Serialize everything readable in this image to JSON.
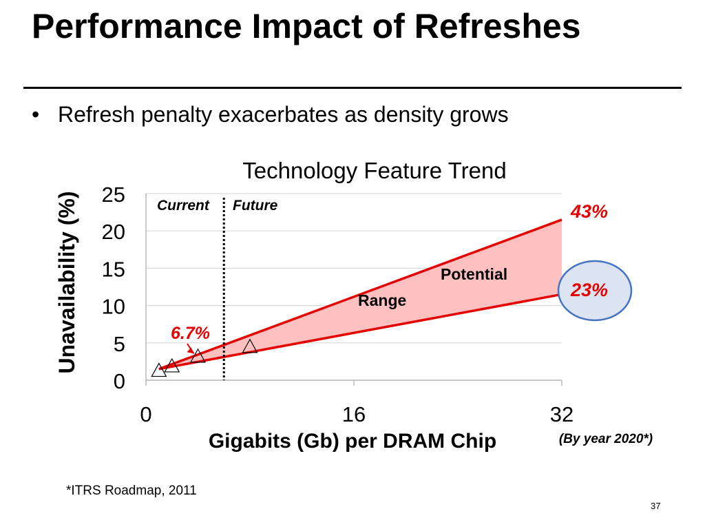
{
  "slide": {
    "title": "Performance Impact of Refreshes",
    "bullet": "Refresh penalty exacerbates as density grows",
    "footnote": "*ITRS Roadmap, 2011",
    "page_number": "37",
    "bullet_symbol": "•"
  },
  "chart_data": {
    "type": "line",
    "title": "Technology Feature Trend",
    "xlabel": "Gigabits (Gb) per DRAM Chip",
    "xlabel_note": "(By year 2020*)",
    "ylabel": "Unavailability (%)",
    "xlim": [
      0,
      32
    ],
    "ylim": [
      0,
      25
    ],
    "x_ticks": [
      0,
      16,
      32
    ],
    "y_ticks": [
      0,
      5,
      10,
      15,
      20,
      25
    ],
    "grid": "horizontal",
    "current_future_boundary_x": 6,
    "region_labels": [
      "Current",
      "Future"
    ],
    "series": [
      {
        "marker": "triangle",
        "x": [
          1,
          2,
          4,
          8
        ],
        "y": [
          1.3,
          1.9,
          3.2,
          4.5
        ]
      }
    ],
    "range": {
      "upper": {
        "x": [
          1,
          32
        ],
        "y": [
          1.5,
          21.5
        ]
      },
      "lower": {
        "x": [
          1,
          32
        ],
        "y": [
          1.5,
          11.5
        ]
      },
      "label_line1": "Potential",
      "label_line2": "Range"
    },
    "annotations": [
      {
        "text": "6.7%",
        "x": 4,
        "y": 3.2
      },
      {
        "text": "43%",
        "x": 32,
        "y": 21.5
      },
      {
        "text": "23%",
        "x": 32,
        "y": 11.5
      }
    ],
    "colors": {
      "accent": "#e50000",
      "fill": "#ffc0c0",
      "circle_fill": "#dce4f2",
      "circle_stroke": "#4472c4",
      "grid": "#d9d9d9"
    }
  }
}
